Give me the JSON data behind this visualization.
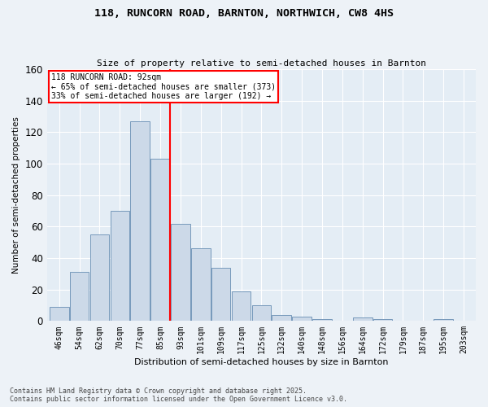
{
  "title1": "118, RUNCORN ROAD, BARNTON, NORTHWICH, CW8 4HS",
  "title2": "Size of property relative to semi-detached houses in Barnton",
  "xlabel": "Distribution of semi-detached houses by size in Barnton",
  "ylabel": "Number of semi-detached properties",
  "categories": [
    "46sqm",
    "54sqm",
    "62sqm",
    "70sqm",
    "77sqm",
    "85sqm",
    "93sqm",
    "101sqm",
    "109sqm",
    "117sqm",
    "125sqm",
    "132sqm",
    "140sqm",
    "148sqm",
    "156sqm",
    "164sqm",
    "172sqm",
    "179sqm",
    "187sqm",
    "195sqm",
    "203sqm"
  ],
  "bar_heights": [
    9,
    31,
    55,
    70,
    127,
    103,
    62,
    46,
    34,
    19,
    10,
    4,
    3,
    1,
    0,
    2,
    1,
    0,
    0,
    1,
    0
  ],
  "bar_color": "#ccd9e8",
  "bar_edge_color": "#7799bb",
  "marker_label": "118 RUNCORN ROAD: 92sqm",
  "annotation_line1": "← 65% of semi-detached houses are smaller (373)",
  "annotation_line2": "33% of semi-detached houses are larger (192) →",
  "red_line_index": 6,
  "ylim": [
    0,
    160
  ],
  "yticks": [
    0,
    20,
    40,
    60,
    80,
    100,
    120,
    140,
    160
  ],
  "footer1": "Contains HM Land Registry data © Crown copyright and database right 2025.",
  "footer2": "Contains public sector information licensed under the Open Government Licence v3.0.",
  "bg_color": "#edf2f7",
  "plot_bg_color": "#e4edf5"
}
